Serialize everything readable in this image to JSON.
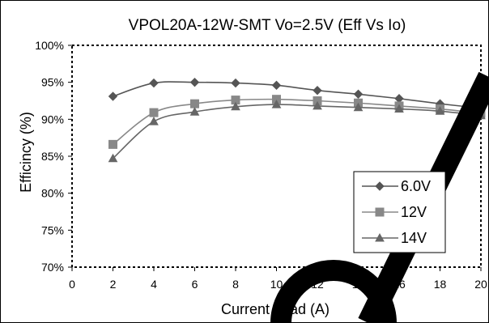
{
  "chart_data": {
    "type": "line",
    "title": "VPOL20A-12W-SMT  Vo=2.5V (Eff Vs Io)",
    "xlabel": "Current Load (A)",
    "ylabel": "Efficincy (%)",
    "xlim": [
      0,
      20
    ],
    "ylim": [
      70,
      100
    ],
    "x_ticks": [
      "0",
      "2",
      "4",
      "6",
      "8",
      "10",
      "12",
      "14",
      "16",
      "18",
      "20"
    ],
    "y_ticks": [
      "70%",
      "75%",
      "80%",
      "85%",
      "90%",
      "95%",
      "100%"
    ],
    "grid": false,
    "legend_position": "right",
    "series": [
      {
        "name": "6.0V",
        "marker": "diamond",
        "color": "#555555",
        "x": [
          2,
          4,
          6,
          8,
          10,
          12,
          14,
          16,
          18,
          20
        ],
        "y": [
          93.1,
          94.9,
          95.0,
          94.9,
          94.6,
          93.9,
          93.4,
          92.8,
          92.1,
          91.5
        ]
      },
      {
        "name": "12V",
        "marker": "square",
        "color": "#888888",
        "x": [
          2,
          4,
          6,
          8,
          10,
          12,
          14,
          16,
          18,
          20
        ],
        "y": [
          86.6,
          90.9,
          92.1,
          92.6,
          92.7,
          92.5,
          92.2,
          91.8,
          91.4,
          90.8
        ]
      },
      {
        "name": "14V",
        "marker": "triangle",
        "color": "#666666",
        "x": [
          2,
          4,
          6,
          8,
          10,
          12,
          14,
          16,
          18,
          20
        ],
        "y": [
          84.7,
          89.7,
          91.0,
          91.7,
          92.0,
          91.8,
          91.6,
          91.4,
          91.1,
          90.5
        ]
      }
    ]
  }
}
